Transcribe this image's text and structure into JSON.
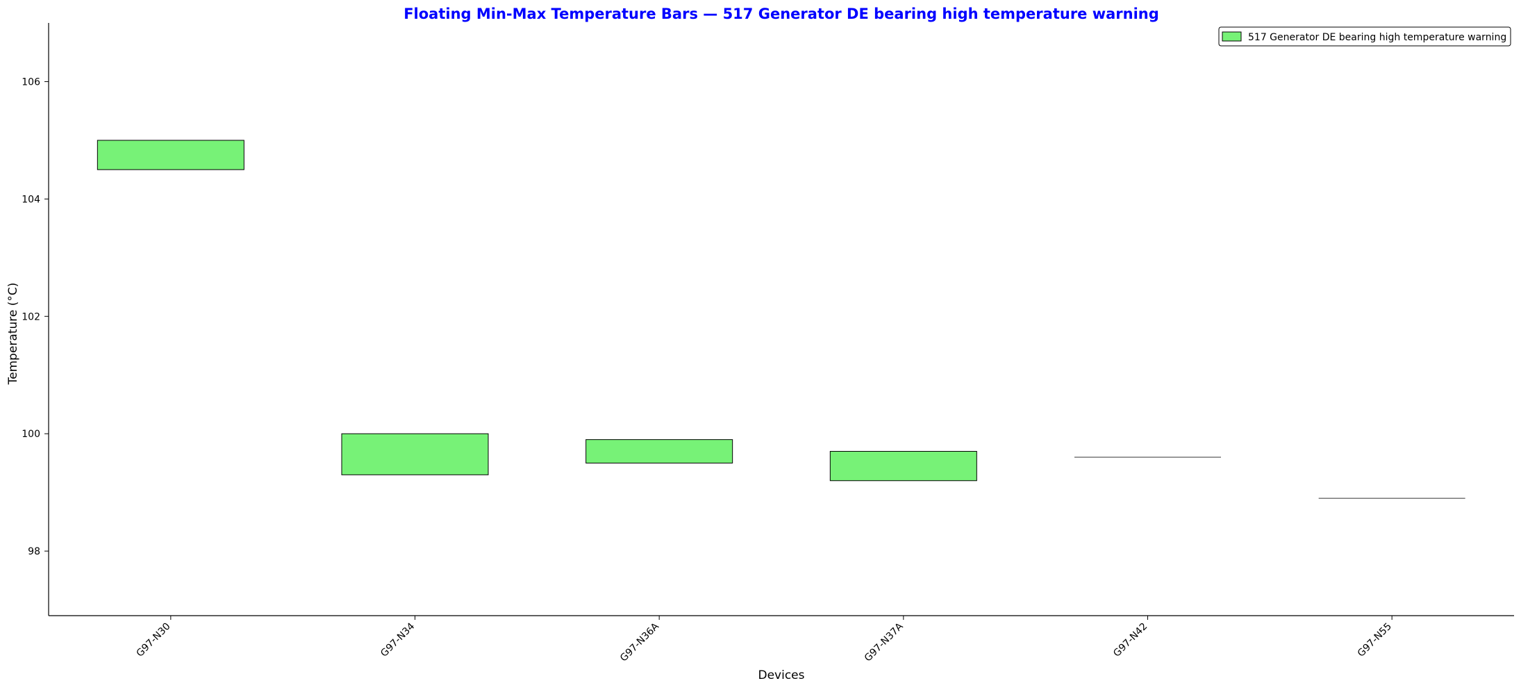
{
  "chart_data": {
    "type": "bar",
    "subtype": "floating-range",
    "title": "Floating Min-Max Temperature Bars — 517 Generator DE bearing high temperature warning",
    "xlabel": "Devices",
    "ylabel": "Temperature (°C)",
    "ylim": [
      96.9,
      107.0
    ],
    "yticks": [
      98,
      100,
      102,
      104,
      106
    ],
    "grid": false,
    "legend_position": "top-right",
    "categories": [
      "G97-N30",
      "G97-N34",
      "G97-N36A",
      "G97-N37A",
      "G97-N42",
      "G97-N55"
    ],
    "series": [
      {
        "name": "517 Generator DE bearing high temperature warning",
        "color": "#77f277",
        "min": [
          104.5,
          99.3,
          99.5,
          99.2,
          99.6,
          98.9
        ],
        "max": [
          105.0,
          100.0,
          99.9,
          99.7,
          99.6,
          98.9
        ]
      }
    ],
    "colors": {
      "title": "#0000ff",
      "bar_fill": "#77f277",
      "bar_edge": "#000000"
    }
  }
}
